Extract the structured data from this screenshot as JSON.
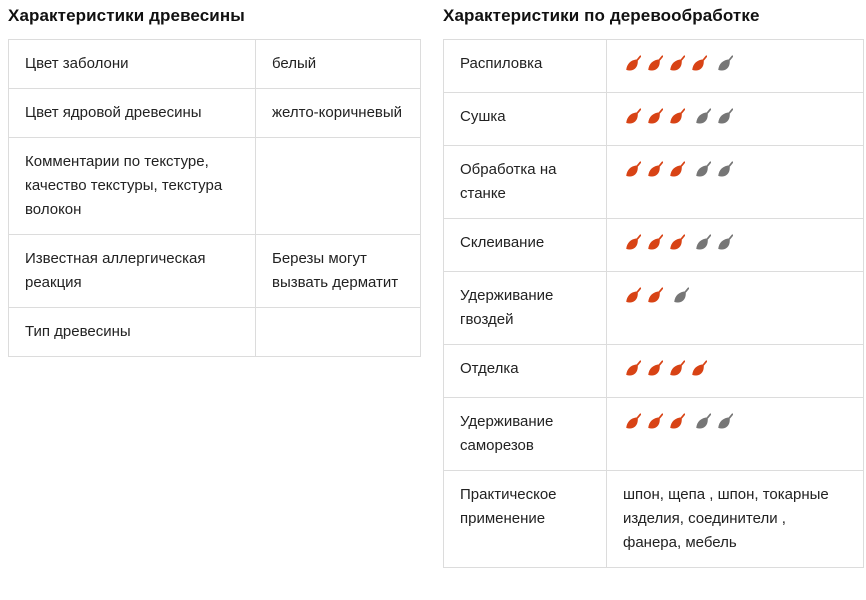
{
  "left": {
    "title": "Характеристики древесины",
    "rows": [
      {
        "label": "Цвет заболони",
        "value": "белый"
      },
      {
        "label": "Цвет ядровой древесины",
        "value": "желто-коричневый"
      },
      {
        "label": "Комментарии по текстуре, качество текстуры, текстура волокон",
        "value": ""
      },
      {
        "label": "Известная аллергическая реакция",
        "value": "Березы могут вызвать дерматит"
      },
      {
        "label": "Тип древесины",
        "value": ""
      }
    ]
  },
  "right": {
    "title": "Характеристики по деревообработке",
    "rows": [
      {
        "label": "Распиловка",
        "rating": {
          "filled": 4,
          "total": 5
        }
      },
      {
        "label": "Сушка",
        "rating": {
          "filled": 3,
          "total": 5
        }
      },
      {
        "label": "Обработка на станке",
        "rating": {
          "filled": 3,
          "total": 5
        }
      },
      {
        "label": "Склеивание",
        "rating": {
          "filled": 3,
          "total": 5
        }
      },
      {
        "label": "Удерживание гвоздей",
        "rating": {
          "filled": 2,
          "total": 3
        }
      },
      {
        "label": "Отделка",
        "rating": {
          "filled": 4,
          "total": 4
        }
      },
      {
        "label": "Удерживание саморезов",
        "rating": {
          "filled": 3,
          "total": 5
        }
      },
      {
        "label": "Практическое применение",
        "value": "шпон, щепа , шпон, токарные изделия, соединители , фанера, мебель"
      }
    ]
  },
  "icons": {
    "rating_filled": "leaf-filled-icon",
    "rating_empty": "leaf-empty-icon"
  },
  "colors": {
    "leaf_filled": "#d84315",
    "leaf_empty": "#767676",
    "border": "#dcdcdc",
    "text": "#222222"
  }
}
